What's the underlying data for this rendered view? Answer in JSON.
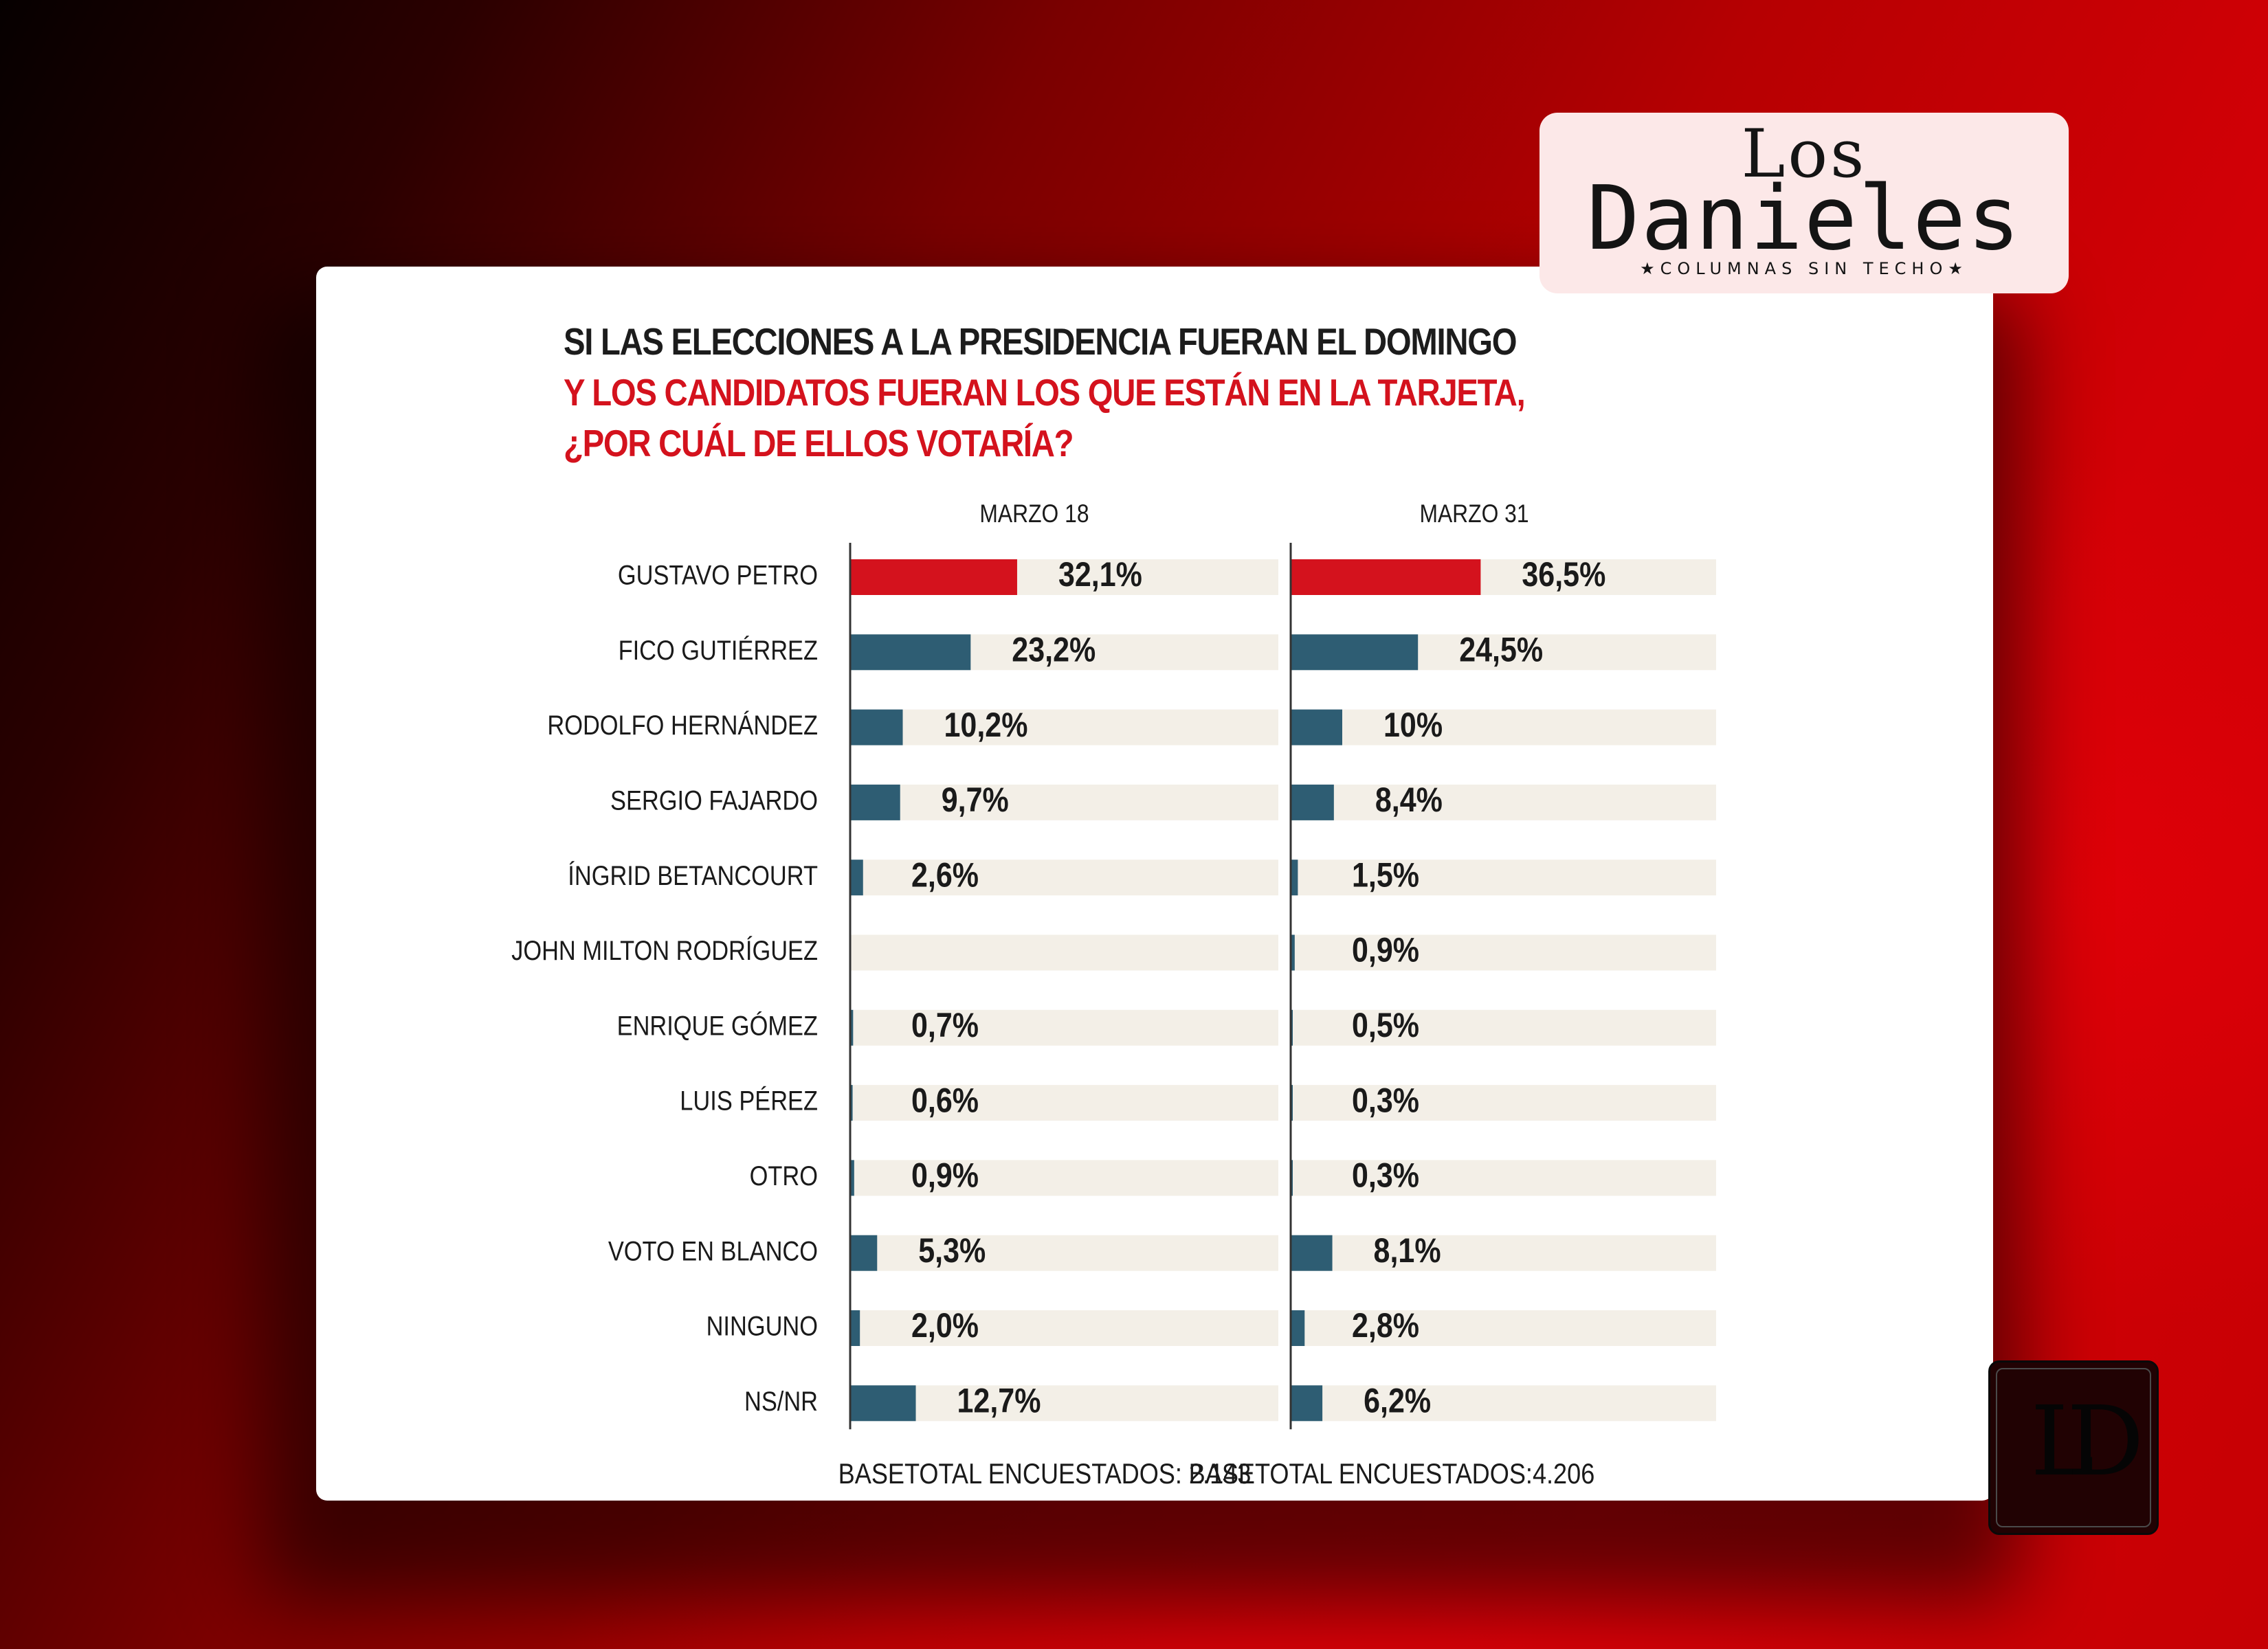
{
  "logo": {
    "line1": "Los",
    "line2": "Danieles",
    "tagline": "★COLUMNAS SIN TECHO★"
  },
  "badge": {
    "text": "LD"
  },
  "chart_data": {
    "type": "bar",
    "title_lines": [
      "SI LAS ELECCIONES A LA PRESIDENCIA FUERAN EL DOMINGO",
      "Y LOS CANDIDATOS FUERAN LOS QUE ESTÁN EN LA TARJETA,",
      "¿POR CUÁL DE ELLOS VOTARÍA?"
    ],
    "categories": [
      "GUSTAVO PETRO",
      "FICO GUTIÉRREZ",
      "RODOLFO HERNÁNDEZ",
      "SERGIO FAJARDO",
      "ÍNGRID BETANCOURT",
      "JOHN MILTON RODRÍGUEZ",
      "ENRIQUE GÓMEZ",
      "LUIS PÉREZ",
      "OTRO",
      "VOTO EN BLANCO",
      "NINGUNO",
      "NS/NR"
    ],
    "series": [
      {
        "name": "MARZO 18",
        "values": [
          32.1,
          23.2,
          10.2,
          9.7,
          2.6,
          null,
          0.7,
          0.6,
          0.9,
          5.3,
          2.0,
          12.7
        ],
        "labels": [
          "32,1%",
          "23,2%",
          "10,2%",
          "9,7%",
          "2,6%",
          "",
          "0,7%",
          "0,6%",
          "0,9%",
          "5,3%",
          "2,0%",
          "12,7%"
        ],
        "base": "BASETOTAL ENCUESTADOS: 2.143"
      },
      {
        "name": "MARZO 31",
        "values": [
          36.5,
          24.5,
          10,
          8.4,
          1.5,
          0.9,
          0.5,
          0.3,
          0.3,
          8.1,
          2.8,
          6.2
        ],
        "labels": [
          "36,5%",
          "24,5%",
          "10%",
          "8,4%",
          "1,5%",
          "0,9%",
          "0,5%",
          "0,3%",
          "0,3%",
          "8,1%",
          "2,8%",
          "6,2%"
        ],
        "base": "BASETOTAL ENCUESTADOS:4.206"
      }
    ],
    "xlim": [
      0,
      100
    ],
    "highlight_category": "GUSTAVO PETRO",
    "colors": {
      "highlight": "#d4121d",
      "bar": "#2e5d73",
      "track": "#f3efe7",
      "axis": "#333333",
      "text": "#1a1a1a",
      "title_dark": "#1c1c1c",
      "title_red": "#d4121d"
    }
  }
}
